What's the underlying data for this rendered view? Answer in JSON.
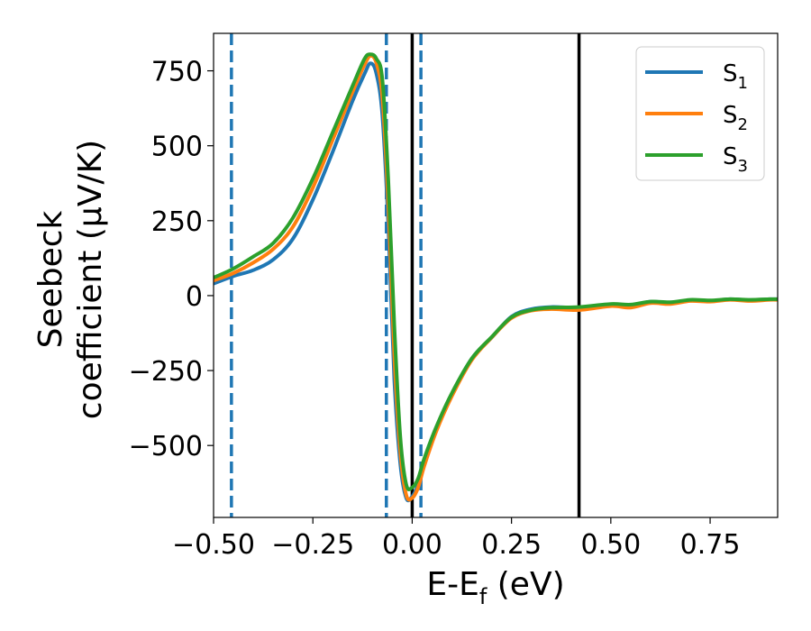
{
  "chart_data": {
    "type": "line",
    "xlabel": {
      "main": "E-E",
      "sub": "f",
      "rest": " (eV)"
    },
    "ylabel": {
      "line1": "Seebeck",
      "line2": "coefficient  (μV/K)"
    },
    "xlim": [
      -0.5,
      0.92
    ],
    "ylim": [
      -740,
      875
    ],
    "xticks": [
      -0.5,
      -0.25,
      0.0,
      0.25,
      0.5,
      0.75
    ],
    "xtick_labels": [
      "−0.50",
      "−0.25",
      "0.00",
      "0.25",
      "0.50",
      "0.75"
    ],
    "yticks": [
      -500,
      -250,
      0,
      250,
      500,
      750
    ],
    "ytick_labels": [
      "−500",
      "−250",
      "0",
      "250",
      "500",
      "750"
    ],
    "legend_position": "top-right",
    "vlines": [
      {
        "x": -0.455,
        "style": "dashed",
        "color": "#1f77b4"
      },
      {
        "x": -0.065,
        "style": "dashed",
        "color": "#1f77b4"
      },
      {
        "x": 0.022,
        "style": "dashed",
        "color": "#1f77b4"
      },
      {
        "x": 0.0,
        "style": "solid",
        "color": "#000000"
      },
      {
        "x": 0.42,
        "style": "solid",
        "color": "#000000"
      }
    ],
    "series": [
      {
        "name": "S",
        "sub": "1",
        "color": "#1f77b4",
        "x": [
          -0.5,
          -0.45,
          -0.4,
          -0.35,
          -0.3,
          -0.25,
          -0.2,
          -0.15,
          -0.12,
          -0.105,
          -0.09,
          -0.075,
          -0.06,
          -0.045,
          -0.03,
          -0.015,
          0.0,
          0.015,
          0.03,
          0.06,
          0.1,
          0.15,
          0.2,
          0.25,
          0.3,
          0.35,
          0.42,
          0.5,
          0.55,
          0.6,
          0.65,
          0.7,
          0.75,
          0.8,
          0.85,
          0.9,
          0.92
        ],
        "y": [
          40,
          65,
          85,
          120,
          190,
          320,
          480,
          650,
          740,
          775,
          740,
          600,
          230,
          -280,
          -560,
          -675,
          -670,
          -630,
          -560,
          -450,
          -330,
          -210,
          -140,
          -70,
          -45,
          -38,
          -40,
          -30,
          -35,
          -20,
          -25,
          -15,
          -18,
          -12,
          -15,
          -12,
          -12
        ]
      },
      {
        "name": "S",
        "sub": "2",
        "color": "#ff7f0e",
        "x": [
          -0.5,
          -0.45,
          -0.4,
          -0.35,
          -0.3,
          -0.25,
          -0.2,
          -0.15,
          -0.12,
          -0.105,
          -0.09,
          -0.075,
          -0.06,
          -0.045,
          -0.03,
          -0.015,
          0.0,
          0.015,
          0.03,
          0.06,
          0.1,
          0.15,
          0.2,
          0.25,
          0.3,
          0.35,
          0.42,
          0.5,
          0.55,
          0.6,
          0.65,
          0.7,
          0.75,
          0.8,
          0.85,
          0.9,
          0.92
        ],
        "y": [
          50,
          75,
          110,
          155,
          230,
          360,
          520,
          680,
          770,
          800,
          775,
          660,
          300,
          -200,
          -520,
          -665,
          -675,
          -640,
          -570,
          -455,
          -335,
          -215,
          -140,
          -75,
          -50,
          -45,
          -48,
          -35,
          -40,
          -25,
          -28,
          -18,
          -20,
          -14,
          -18,
          -14,
          -14
        ]
      },
      {
        "name": "S",
        "sub": "3",
        "color": "#2ca02c",
        "x": [
          -0.5,
          -0.45,
          -0.4,
          -0.35,
          -0.3,
          -0.25,
          -0.2,
          -0.15,
          -0.12,
          -0.105,
          -0.09,
          -0.075,
          -0.06,
          -0.045,
          -0.03,
          -0.015,
          0.0,
          0.015,
          0.03,
          0.06,
          0.1,
          0.15,
          0.2,
          0.25,
          0.3,
          0.35,
          0.42,
          0.5,
          0.55,
          0.6,
          0.65,
          0.7,
          0.75,
          0.8,
          0.85,
          0.9,
          0.92
        ],
        "y": [
          60,
          90,
          130,
          175,
          260,
          390,
          545,
          700,
          790,
          805,
          790,
          720,
          380,
          -100,
          -470,
          -630,
          -640,
          -610,
          -545,
          -440,
          -325,
          -210,
          -138,
          -72,
          -48,
          -40,
          -38,
          -28,
          -30,
          -20,
          -22,
          -14,
          -16,
          -12,
          -14,
          -12,
          -12
        ]
      }
    ]
  }
}
